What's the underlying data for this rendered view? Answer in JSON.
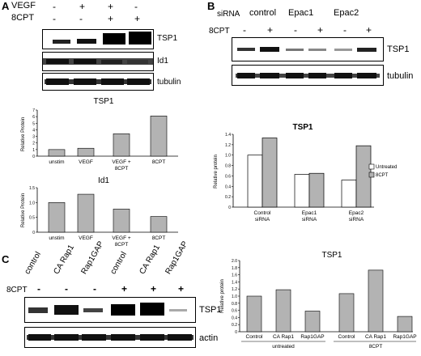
{
  "panelA": {
    "letter": "A",
    "rows": [
      {
        "label": "VEGF",
        "signs": [
          "-",
          "+",
          "+",
          "-"
        ]
      },
      {
        "label": "8CPT",
        "signs": [
          "-",
          "-",
          "+",
          "+"
        ]
      }
    ],
    "blots": [
      "TSP1",
      "Id1",
      "tubulin"
    ]
  },
  "panelB": {
    "letter": "B",
    "sirna_label": "siRNA",
    "groups": [
      "control",
      "Epac1",
      "Epac2"
    ],
    "cpt_label": "8CPT",
    "signs": [
      "-",
      "+",
      "-",
      "+",
      "-",
      "+"
    ],
    "blots": [
      "TSP1",
      "tubulin"
    ]
  },
  "panelC": {
    "letter": "C",
    "lanes": [
      "control",
      "CA Rap1",
      "Rap1GAP",
      "control",
      "CA Rap1",
      "Rap1GAP"
    ],
    "cpt_label": "8CPT",
    "signs": [
      "-",
      "-",
      "-",
      "+",
      "+",
      "+"
    ],
    "blots": [
      "TSP1",
      "actin"
    ]
  },
  "chart_data": [
    {
      "type": "bar",
      "title": "TSP1",
      "ylabel": "Relative Protein",
      "categories": [
        "unstim",
        "VEGF",
        "VEGF + 8CPT",
        "8CPT"
      ],
      "values": [
        1.0,
        1.2,
        3.4,
        6.1
      ],
      "ylim": [
        0,
        7
      ],
      "yticks": [
        "0",
        "1",
        "2",
        "3",
        "4",
        "5",
        "6",
        "7"
      ]
    },
    {
      "type": "bar",
      "title": "Id1",
      "ylabel": "Relative Protein",
      "categories": [
        "unstim",
        "VEGF",
        "VEGF + 8CPT",
        "8CPT"
      ],
      "values": [
        1.0,
        1.28,
        0.78,
        0.53
      ],
      "ylim": [
        0,
        1.5
      ],
      "yticks": [
        "0",
        "0.5",
        "1.0",
        "1.5"
      ]
    },
    {
      "type": "bar",
      "title": "TSP1",
      "ylabel": "Relative protein",
      "categories": [
        "Control siRNA",
        "Epac1 siRNA",
        "Epac2 siRNA"
      ],
      "series": [
        {
          "name": "Untreated",
          "values": [
            1.0,
            0.63,
            0.52
          ],
          "color": "#ffffff"
        },
        {
          "name": "8CPT",
          "values": [
            1.33,
            0.65,
            1.18
          ],
          "color": "#b3b3b3"
        }
      ],
      "ylim": [
        0,
        1.4
      ],
      "yticks": [
        "0",
        "0.2",
        "0.4",
        "0.6",
        "0.8",
        "1.0",
        "1.2",
        "1.4"
      ],
      "legend": "right"
    },
    {
      "type": "bar",
      "title": "TSP1",
      "ylabel": "Relative protein",
      "categories": [
        "Control",
        "CA Rap1",
        "Rap1GAP",
        "Control",
        "CA Rap1",
        "Rap1GAP"
      ],
      "groups": [
        "untreated",
        "8CPT"
      ],
      "values": [
        1.0,
        1.18,
        0.58,
        1.07,
        1.73,
        0.43
      ],
      "ylim": [
        0,
        2
      ],
      "yticks": [
        "0",
        "0.2",
        "0.4",
        "0.6",
        "0.8",
        "1.0",
        "1.2",
        "1.4",
        "1.6",
        "1.8",
        "2.0"
      ]
    }
  ]
}
